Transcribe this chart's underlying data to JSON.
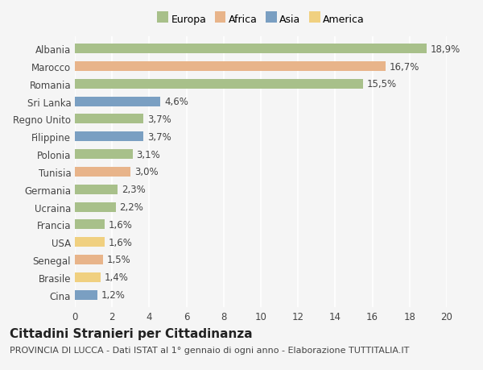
{
  "categories": [
    "Albania",
    "Marocco",
    "Romania",
    "Sri Lanka",
    "Regno Unito",
    "Filippine",
    "Polonia",
    "Tunisia",
    "Germania",
    "Ucraina",
    "Francia",
    "USA",
    "Senegal",
    "Brasile",
    "Cina"
  ],
  "values": [
    18.9,
    16.7,
    15.5,
    4.6,
    3.7,
    3.7,
    3.1,
    3.0,
    2.3,
    2.2,
    1.6,
    1.6,
    1.5,
    1.4,
    1.2
  ],
  "labels": [
    "18,9%",
    "16,7%",
    "15,5%",
    "4,6%",
    "3,7%",
    "3,7%",
    "3,1%",
    "3,0%",
    "2,3%",
    "2,2%",
    "1,6%",
    "1,6%",
    "1,5%",
    "1,4%",
    "1,2%"
  ],
  "continents": [
    "Europa",
    "Africa",
    "Europa",
    "Asia",
    "Europa",
    "Asia",
    "Europa",
    "Africa",
    "Europa",
    "Europa",
    "Europa",
    "America",
    "Africa",
    "America",
    "Asia"
  ],
  "colors": {
    "Europa": "#a8c08a",
    "Africa": "#e8b48a",
    "Asia": "#7a9fc2",
    "America": "#f0d080"
  },
  "xlim": [
    0,
    20
  ],
  "xticks": [
    0,
    2,
    4,
    6,
    8,
    10,
    12,
    14,
    16,
    18,
    20
  ],
  "title": "Cittadini Stranieri per Cittadinanza",
  "subtitle": "PROVINCIA DI LUCCA - Dati ISTAT al 1° gennaio di ogni anno - Elaborazione TUTTITALIA.IT",
  "background_color": "#f5f5f5",
  "grid_color": "#ffffff",
  "bar_height": 0.55,
  "label_fontsize": 8.5,
  "tick_fontsize": 8.5,
  "title_fontsize": 11,
  "subtitle_fontsize": 8
}
